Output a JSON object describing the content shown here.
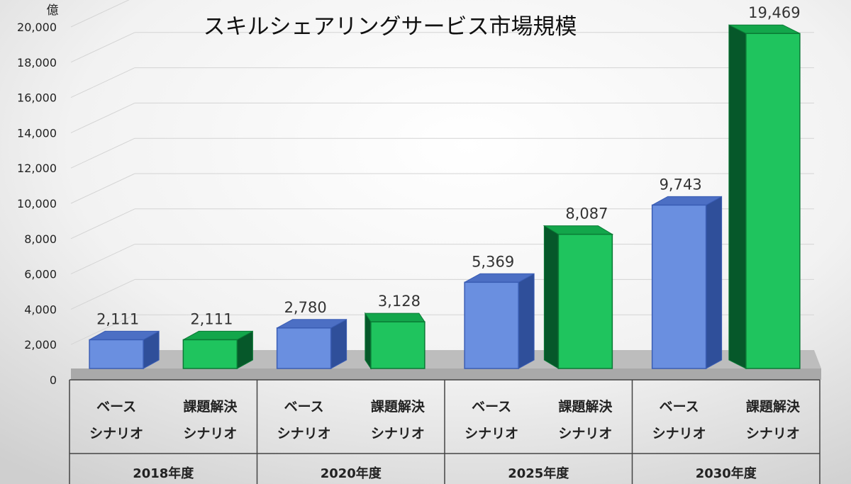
{
  "chart_data": {
    "type": "bar",
    "title": "スキルシェアリングサービス市場規模",
    "unit_label": "億",
    "ylim": [
      0,
      20000
    ],
    "yticks": [
      "0",
      "2,000",
      "4,000",
      "6,000",
      "8,000",
      "10,000",
      "12,000",
      "14,000",
      "16,000",
      "18,000",
      "20,000"
    ],
    "groups": [
      "2018年度",
      "2020年度",
      "2025年度",
      "2030年度"
    ],
    "scenario_lines": {
      "base": [
        "ベース",
        "シナリオ"
      ],
      "solution": [
        "課題解決",
        "シナリオ"
      ]
    },
    "series": [
      {
        "key": "base",
        "values": [
          2111,
          2780,
          5369,
          9743
        ],
        "labels": [
          "2,111",
          "2,780",
          "5,369",
          "9,743"
        ]
      },
      {
        "key": "solution",
        "values": [
          2111,
          3128,
          8087,
          19469
        ],
        "labels": [
          "2,111",
          "3,128",
          "8,087",
          "19,469"
        ]
      }
    ],
    "colors": {
      "base_front": "#6a8fe0",
      "base_top": "#4c6fc4",
      "base_side": "#2f4f9a",
      "base_stroke": "#3a5db4",
      "solution_front": "#1fc45e",
      "solution_top": "#13a64b",
      "solution_side": "#06582a",
      "solution_stroke": "#0a7a35",
      "grid": "#d4d4d4",
      "floor": "#bdbdbd",
      "table_line": "#444444"
    },
    "grid": true
  }
}
